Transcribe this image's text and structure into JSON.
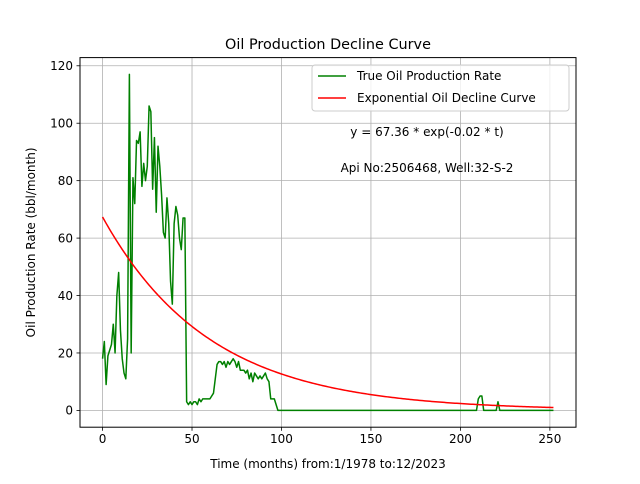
{
  "chart_data": {
    "type": "line",
    "title": "Oil Production Decline Curve",
    "xlabel": "Time (months) from:1/1978 to:12/2023",
    "ylabel": "Oil Production Rate (bbl/month)",
    "xlim": [
      -12.6,
      264.6
    ],
    "ylim": [
      -5.85,
      122.85
    ],
    "xticks": [
      0,
      50,
      100,
      150,
      200,
      250
    ],
    "yticks": [
      0,
      20,
      40,
      60,
      80,
      100,
      120
    ],
    "grid": true,
    "legend_position": "top-right",
    "annotations": {
      "equation": "y = 67.36 * exp(-0.02 * t)",
      "well": "Api No:2506468, Well:32-S-2"
    },
    "series": [
      {
        "name": "True Oil Production Rate",
        "color": "#008000",
        "x": [
          0,
          1,
          2,
          3,
          4,
          5,
          6,
          7,
          8,
          9,
          10,
          11,
          12,
          13,
          14,
          15,
          16,
          17,
          18,
          19,
          20,
          21,
          22,
          23,
          24,
          25,
          26,
          27,
          28,
          29,
          30,
          31,
          32,
          33,
          34,
          35,
          36,
          37,
          38,
          39,
          40,
          41,
          42,
          43,
          44,
          45,
          46,
          47,
          48,
          49,
          50,
          51,
          52,
          53,
          54,
          55,
          56,
          57,
          58,
          59,
          60,
          62,
          64,
          65,
          66,
          67,
          68,
          69,
          70,
          71,
          72,
          73,
          74,
          75,
          76,
          77,
          78,
          79,
          80,
          81,
          82,
          83,
          84,
          85,
          86,
          87,
          88,
          89,
          90,
          91,
          92,
          93,
          94,
          95,
          96,
          97,
          98,
          99,
          100,
          150,
          200,
          209,
          210,
          211,
          212,
          213,
          214,
          215,
          220,
          221,
          222,
          252
        ],
        "y": [
          18,
          24,
          9,
          19,
          21,
          23,
          30,
          20,
          40,
          48,
          28,
          18,
          13,
          11,
          25,
          117,
          20,
          81,
          72,
          94,
          93,
          97,
          78,
          86,
          80,
          85,
          106,
          104,
          77,
          95,
          69,
          92,
          85,
          75,
          62,
          60,
          74,
          65,
          45,
          37,
          65,
          71,
          68,
          60,
          56,
          67,
          67,
          3,
          2,
          3,
          2,
          3,
          3,
          2,
          4,
          3,
          4,
          4,
          4,
          4,
          4,
          6,
          16,
          17,
          17,
          16,
          17,
          15,
          17,
          16,
          17,
          18,
          17,
          15,
          17,
          14,
          14,
          14,
          13,
          14,
          11,
          13,
          10,
          13,
          12,
          11,
          12,
          11,
          12,
          13,
          11,
          10,
          4,
          4,
          4,
          2,
          0,
          0,
          0,
          0,
          0,
          0,
          4,
          5,
          5,
          0,
          0,
          0,
          0,
          3,
          0,
          0
        ]
      },
      {
        "name": "Exponential Oil Decline Curve",
        "color": "#ff0000",
        "a": 67.36,
        "b": -0.0167,
        "x_range": [
          0,
          252
        ]
      }
    ]
  }
}
